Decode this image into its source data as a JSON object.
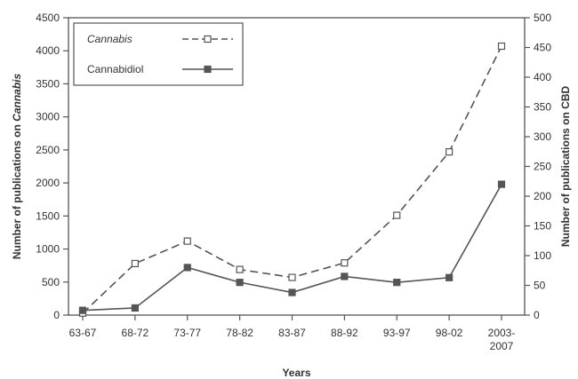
{
  "chart_data": {
    "type": "line",
    "categories": [
      "63-67",
      "68-72",
      "73-77",
      "78-82",
      "83-87",
      "88-92",
      "93-97",
      "98-02",
      "2003-2007"
    ],
    "category_display": [
      [
        "63-67"
      ],
      [
        "68-72"
      ],
      [
        "73-77"
      ],
      [
        "78-82"
      ],
      [
        "83-87"
      ],
      [
        "88-92"
      ],
      [
        "93-97"
      ],
      [
        "98-02"
      ],
      [
        "2003-",
        "2007"
      ]
    ],
    "xlabel": "Years",
    "ylabel_left_prefix": "Number of publications on ",
    "ylabel_left_italic": "Cannabis",
    "ylabel_right": "Number of publications on CBD",
    "ylim_left": [
      0,
      4500
    ],
    "ylim_right": [
      0,
      500
    ],
    "yticks_left": [
      0,
      500,
      1000,
      1500,
      2000,
      2500,
      3000,
      3500,
      4000,
      4500
    ],
    "yticks_right": [
      0,
      50,
      100,
      150,
      200,
      250,
      300,
      350,
      400,
      450,
      500
    ],
    "grid": false,
    "legend_position": "top-left",
    "series": [
      {
        "name": "Cannabis",
        "axis": "left",
        "marker": "open-square",
        "line_style": "dashed",
        "values": [
          30,
          780,
          1120,
          690,
          570,
          790,
          1510,
          2470,
          4070
        ]
      },
      {
        "name": "Cannabidiol",
        "axis": "right",
        "marker": "filled-square",
        "line_style": "solid",
        "values": [
          8,
          12,
          80,
          55,
          38,
          65,
          55,
          63,
          220
        ]
      }
    ],
    "colors": {
      "axis": "#555555",
      "series": "#555555",
      "text": "#333333",
      "background": "#ffffff"
    }
  }
}
